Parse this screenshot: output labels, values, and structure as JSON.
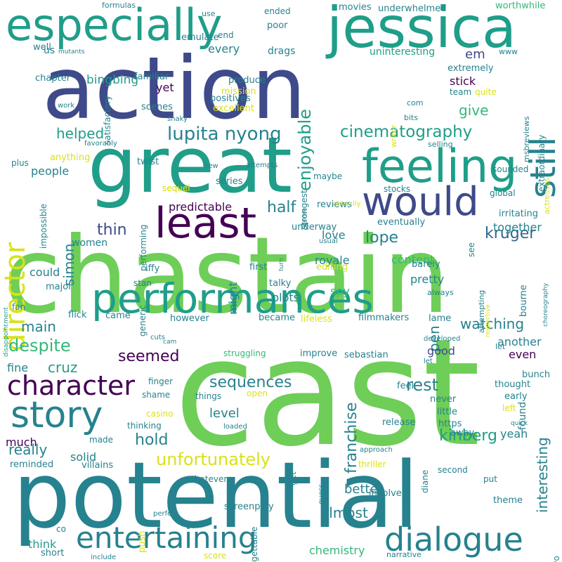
{
  "palette": {
    "dark_purple": "#440154",
    "indigo": "#3e4a89",
    "blue": "#31688e",
    "teal": "#26828e",
    "sea": "#1f9e89",
    "green": "#35b779",
    "lime": "#6ece58",
    "yellow": "#b5de2b",
    "bright_yellow": "#d8e219"
  },
  "words": [
    {
      "text": "cast"
    },
    {
      "text": "chastain"
    },
    {
      "text": "potential"
    },
    {
      "text": "action"
    },
    {
      "text": "great"
    },
    {
      "text": "jessica"
    },
    {
      "text": "especially"
    },
    {
      "text": "feeling"
    },
    {
      "text": "performances"
    },
    {
      "text": "least"
    },
    {
      "text": "would"
    },
    {
      "text": "director"
    },
    {
      "text": "story"
    },
    {
      "text": "character"
    },
    {
      "text": "entertaining"
    },
    {
      "text": "dialogue"
    },
    {
      "text": "still"
    },
    {
      "text": "lupita nyong"
    },
    {
      "text": "cinematography"
    },
    {
      "text": "enjoyable"
    },
    {
      "text": "unfortunately"
    },
    {
      "text": "sequences"
    },
    {
      "text": "helped"
    },
    {
      "text": "bingbing"
    },
    {
      "text": "give"
    },
    {
      "text": "em"
    },
    {
      "text": "kruger"
    },
    {
      "text": "lope"
    },
    {
      "text": "half"
    },
    {
      "text": "thin"
    },
    {
      "text": "simon"
    },
    {
      "text": "predictable"
    },
    {
      "text": "watching"
    },
    {
      "text": "seemed"
    },
    {
      "text": "despite"
    },
    {
      "text": "main"
    },
    {
      "text": "cruz"
    },
    {
      "text": "rest"
    },
    {
      "text": "franchise"
    },
    {
      "text": "kinberg"
    },
    {
      "text": "interesting"
    },
    {
      "text": "really"
    },
    {
      "text": "hold"
    },
    {
      "text": "level"
    },
    {
      "text": "almost"
    },
    {
      "text": "pen"
    },
    {
      "text": "together"
    },
    {
      "text": "stick"
    },
    {
      "text": "could"
    },
    {
      "text": "spy"
    },
    {
      "text": "better"
    },
    {
      "text": "love"
    },
    {
      "text": "yet"
    },
    {
      "text": "every"
    },
    {
      "text": "people"
    },
    {
      "text": "women"
    },
    {
      "text": "content"
    },
    {
      "text": "good"
    },
    {
      "text": "another"
    },
    {
      "text": "even"
    },
    {
      "text": "fine"
    },
    {
      "text": "much"
    },
    {
      "text": "solid"
    },
    {
      "text": "think"
    },
    {
      "text": "chemistry"
    },
    {
      "text": "found"
    },
    {
      "text": "yeah"
    },
    {
      "text": "might"
    },
    {
      "text": "plots"
    },
    {
      "text": "royale"
    },
    {
      "text": "pretty"
    },
    {
      "text": "us"
    },
    {
      "text": "well"
    },
    {
      "text": "emulate"
    },
    {
      "text": "end"
    },
    {
      "text": "drags"
    },
    {
      "text": "poor"
    },
    {
      "text": "ended"
    },
    {
      "text": "movies"
    },
    {
      "text": "underwhelmed"
    },
    {
      "text": "worthwhile"
    },
    {
      "text": "uninteresting"
    },
    {
      "text": "extremely"
    },
    {
      "text": "team"
    },
    {
      "text": "quite"
    },
    {
      "text": "mission"
    },
    {
      "text": "excellent"
    },
    {
      "text": "positives"
    },
    {
      "text": "produce"
    },
    {
      "text": "familiar"
    },
    {
      "text": "chapter"
    },
    {
      "text": "scenes"
    },
    {
      "text": "com"
    },
    {
      "text": "bits"
    },
    {
      "text": "selling"
    },
    {
      "text": "sounded"
    },
    {
      "text": "plus"
    },
    {
      "text": "anything"
    },
    {
      "text": "twist"
    },
    {
      "text": "series"
    },
    {
      "text": "maybe"
    },
    {
      "text": "sequel"
    },
    {
      "text": "performing"
    },
    {
      "text": "reviews"
    },
    {
      "text": "stocks"
    },
    {
      "text": "global"
    },
    {
      "text": "actually"
    },
    {
      "text": "eventually"
    },
    {
      "text": "irritating"
    },
    {
      "text": "underway"
    },
    {
      "text": "usual"
    },
    {
      "text": "impossible"
    },
    {
      "text": "first"
    },
    {
      "text": "editing"
    },
    {
      "text": "barely"
    },
    {
      "text": "see"
    },
    {
      "text": "iffy"
    },
    {
      "text": "stan"
    },
    {
      "text": "talky"
    },
    {
      "text": "major"
    },
    {
      "text": "generic"
    },
    {
      "text": "fan"
    },
    {
      "text": "flick"
    },
    {
      "text": "came"
    },
    {
      "text": "however"
    },
    {
      "text": "became"
    },
    {
      "text": "lifeless"
    },
    {
      "text": "filmmakers"
    },
    {
      "text": "lame"
    },
    {
      "text": "bourne"
    },
    {
      "text": "always"
    },
    {
      "text": "struggling"
    },
    {
      "text": "improve"
    },
    {
      "text": "sebastian"
    },
    {
      "text": "developed"
    },
    {
      "text": "let"
    },
    {
      "text": "finger"
    },
    {
      "text": "shame"
    },
    {
      "text": "cuts"
    },
    {
      "text": "cam"
    },
    {
      "text": "things"
    },
    {
      "text": "open"
    },
    {
      "text": "feel"
    },
    {
      "text": "thought"
    },
    {
      "text": "bunch"
    },
    {
      "text": "early"
    },
    {
      "text": "left"
    },
    {
      "text": "never"
    },
    {
      "text": "little"
    },
    {
      "text": "https"
    },
    {
      "text": "casino"
    },
    {
      "text": "thinking"
    },
    {
      "text": "loaded"
    },
    {
      "text": "release"
    },
    {
      "text": "away"
    },
    {
      "text": "quick"
    },
    {
      "text": "made"
    },
    {
      "text": "approach"
    },
    {
      "text": "reminded"
    },
    {
      "text": "villains"
    },
    {
      "text": "thriller"
    },
    {
      "text": "guess"
    },
    {
      "text": "diane"
    },
    {
      "text": "second"
    },
    {
      "text": "put"
    },
    {
      "text": "theme"
    },
    {
      "text": "get"
    },
    {
      "text": "whatever"
    },
    {
      "text": "perfect"
    },
    {
      "text": "screenplay"
    },
    {
      "text": "involved"
    },
    {
      "text": "push"
    },
    {
      "text": "forgettable"
    },
    {
      "text": "co"
    },
    {
      "text": "short"
    },
    {
      "text": "score"
    },
    {
      "text": "narrative"
    },
    {
      "text": "include"
    },
    {
      "text": "two"
    },
    {
      "text": "let"
    },
    {
      "text": "formulas"
    },
    {
      "text": "use"
    },
    {
      "text": "mutants"
    },
    {
      "text": "www"
    },
    {
      "text": "work"
    },
    {
      "text": "satisfactory"
    },
    {
      "text": "shaky"
    },
    {
      "text": "favorably"
    },
    {
      "text": "new"
    },
    {
      "text": "attempts"
    },
    {
      "text": "strongest"
    },
    {
      "text": "genre"
    },
    {
      "text": "turn"
    },
    {
      "text": "disappointment"
    },
    {
      "text": "respective"
    },
    {
      "text": "attempting"
    },
    {
      "text": "choreography"
    },
    {
      "text": "extraordinary"
    },
    {
      "text": "msbreviews"
    },
    {
      "text": "actresses"
    },
    {
      "text": "writer"
    },
    {
      "text": "sequel"
    }
  ]
}
